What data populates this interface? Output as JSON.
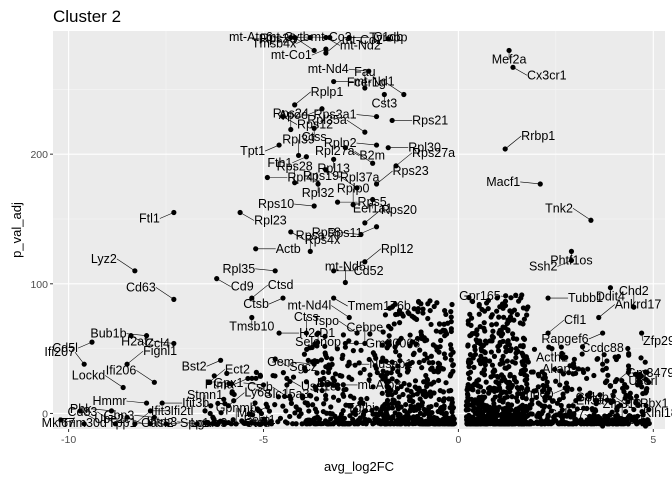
{
  "chart_data": {
    "type": "scatter",
    "title": "Cluster 2",
    "xlabel": "avg_log2FC",
    "ylabel": "p_val_adj",
    "xlim": [
      -10.4,
      5.3
    ],
    "ylim": [
      -12,
      295
    ],
    "xticks": [
      -10,
      -5,
      0,
      5
    ],
    "yticks": [
      0,
      100,
      200
    ],
    "grid": true,
    "panel_color": "#ebebeb",
    "point_color": "#000000",
    "labeled_genes": [
      {
        "gene": "mt-Atp6",
        "x": -4.3,
        "y": 290
      },
      {
        "gene": "mt-Co3",
        "x": -4.2,
        "y": 290
      },
      {
        "gene": "Tmsb4x",
        "x": -3.8,
        "y": 290
      },
      {
        "gene": "mt-Nd2",
        "x": -3.4,
        "y": 290
      },
      {
        "gene": "mt-Cytb",
        "x": -3.3,
        "y": 290
      },
      {
        "gene": "Tyrobp",
        "x": -2.8,
        "y": 290
      },
      {
        "gene": "C1qb",
        "x": -1.8,
        "y": 289
      },
      {
        "gene": "Mef2a",
        "x": 1.3,
        "y": 280
      },
      {
        "gene": "Rps29",
        "x": -3.7,
        "y": 280
      },
      {
        "gene": "mt-Co2",
        "x": -3.4,
        "y": 278
      },
      {
        "gene": "mt-Co1",
        "x": -3.4,
        "y": 281
      },
      {
        "gene": "Cx3cr1",
        "x": 1.4,
        "y": 267
      },
      {
        "gene": "mt-Nd4",
        "x": -2.3,
        "y": 264
      },
      {
        "gene": "mt-Nd1",
        "x": -3.2,
        "y": 256
      },
      {
        "gene": "Fau",
        "x": -2.4,
        "y": 251
      },
      {
        "gene": "Cst3",
        "x": -1.9,
        "y": 246
      },
      {
        "gene": "Fcer1g",
        "x": -1.4,
        "y": 246
      },
      {
        "gene": "Rplp1",
        "x": -4.2,
        "y": 238
      },
      {
        "gene": "Apoe",
        "x": -3.5,
        "y": 235
      },
      {
        "gene": "Rps12",
        "x": -4.5,
        "y": 229
      },
      {
        "gene": "Rps3a1",
        "x": -2.1,
        "y": 229
      },
      {
        "gene": "Rps21",
        "x": -1.7,
        "y": 226
      },
      {
        "gene": "Rps24",
        "x": -4.3,
        "y": 219
      },
      {
        "gene": "Ctss",
        "x": -3.7,
        "y": 220
      },
      {
        "gene": "Rpl35a",
        "x": -2.4,
        "y": 217
      },
      {
        "gene": "Rrbp1",
        "x": 1.2,
        "y": 204
      },
      {
        "gene": "Tpt1",
        "x": -4.6,
        "y": 207
      },
      {
        "gene": "B2m",
        "x": -2.9,
        "y": 205
      },
      {
        "gene": "Rplp2",
        "x": -2.1,
        "y": 207
      },
      {
        "gene": "Rpl30",
        "x": -1.8,
        "y": 205
      },
      {
        "gene": "Rpl39",
        "x": -4.1,
        "y": 199
      },
      {
        "gene": "Rpl13",
        "x": -3.2,
        "y": 196
      },
      {
        "gene": "Rpl27a",
        "x": -2.2,
        "y": 193
      },
      {
        "gene": "Rps27a",
        "x": -1.6,
        "y": 191
      },
      {
        "gene": "Fth1",
        "x": -3.9,
        "y": 198
      },
      {
        "gene": "Rpl37a",
        "x": -3.4,
        "y": 188
      },
      {
        "gene": "Macf1",
        "x": 2.1,
        "y": 177
      },
      {
        "gene": "Rpl41",
        "x": -4.9,
        "y": 182
      },
      {
        "gene": "Rps28",
        "x": -4.2,
        "y": 178
      },
      {
        "gene": "Rpl32",
        "x": -3.6,
        "y": 177
      },
      {
        "gene": "Rps19",
        "x": -2.6,
        "y": 174
      },
      {
        "gene": "Rps23",
        "x": -2.1,
        "y": 177
      },
      {
        "gene": "Ftl1",
        "x": -7.3,
        "y": 155
      },
      {
        "gene": "Rpl23",
        "x": -5.6,
        "y": 155
      },
      {
        "gene": "Rps10",
        "x": -3.7,
        "y": 160
      },
      {
        "gene": "Rps5",
        "x": -3.1,
        "y": 163
      },
      {
        "gene": "Rplp0",
        "x": -2.7,
        "y": 161
      },
      {
        "gene": "Eef1a1",
        "x": -2.2,
        "y": 165
      },
      {
        "gene": "Tnk2",
        "x": 3.4,
        "y": 149
      },
      {
        "gene": "Rps20",
        "x": -2.4,
        "y": 147
      },
      {
        "gene": "Rps11",
        "x": -2.1,
        "y": 144
      },
      {
        "gene": "Rps4x",
        "x": -4.3,
        "y": 140
      },
      {
        "gene": "Rps8",
        "x": -2.5,
        "y": 138
      },
      {
        "gene": "Actb",
        "x": -5.2,
        "y": 127
      },
      {
        "gene": "Rpsa",
        "x": -3.8,
        "y": 125
      },
      {
        "gene": "Phtf1os",
        "x": 2.9,
        "y": 125
      },
      {
        "gene": "Lyz2",
        "x": -8.3,
        "y": 110
      },
      {
        "gene": "Rpl12",
        "x": -2.4,
        "y": 117
      },
      {
        "gene": "Ssh2",
        "x": 2.9,
        "y": 118
      },
      {
        "gene": "Cd9",
        "x": -6.2,
        "y": 104
      },
      {
        "gene": "Rpl35",
        "x": -4.7,
        "y": 110
      },
      {
        "gene": "Cd52",
        "x": -3.2,
        "y": 110
      },
      {
        "gene": "mt-Nd5",
        "x": -2.9,
        "y": 101
      },
      {
        "gene": "Ddit4",
        "x": 3.9,
        "y": 97
      },
      {
        "gene": "Cd63",
        "x": -7.3,
        "y": 88
      },
      {
        "gene": "Ctsd",
        "x": -5.3,
        "y": 89
      },
      {
        "gene": "Ctsb",
        "x": -4.5,
        "y": 89
      },
      {
        "gene": "Tmem176b",
        "x": -3.2,
        "y": 89
      },
      {
        "gene": "Gpr165",
        "x": 1.6,
        "y": 89
      },
      {
        "gene": "Tubb1",
        "x": 2.3,
        "y": 89
      },
      {
        "gene": "Chd2",
        "x": 4.5,
        "y": 82
      },
      {
        "gene": "Tmsb10",
        "x": -5.3,
        "y": 74
      },
      {
        "gene": "mt-Nd4l",
        "x": -2.8,
        "y": 74
      },
      {
        "gene": "Ankrd17",
        "x": 3.6,
        "y": 74
      },
      {
        "gene": "Cd5l",
        "x": -9.4,
        "y": 55
      },
      {
        "gene": "Ccl4",
        "x": -8.4,
        "y": 60
      },
      {
        "gene": "Bub1b",
        "x": -8.0,
        "y": 60
      },
      {
        "gene": "H2-D1",
        "x": -4.6,
        "y": 62
      },
      {
        "gene": "Ctss",
        "x": -3.9,
        "y": 62
      },
      {
        "gene": "Selenop",
        "x": -3.6,
        "y": 62
      },
      {
        "gene": "Tspo",
        "x": -2.6,
        "y": 62
      },
      {
        "gene": "Cfl1",
        "x": 2.3,
        "y": 62
      },
      {
        "gene": "Rapgef6",
        "x": 3.7,
        "y": 62
      },
      {
        "gene": "Zfp292",
        "x": 4.7,
        "y": 62
      },
      {
        "gene": "H2afz",
        "x": -7.3,
        "y": 54
      },
      {
        "gene": "Gm30068",
        "x": -2.9,
        "y": 54
      },
      {
        "gene": "Cebpe",
        "x": -2.4,
        "y": 54
      },
      {
        "gene": "Acth1",
        "x": 2.4,
        "y": 50
      },
      {
        "gene": "Ifi207",
        "x": -9.6,
        "y": 38
      },
      {
        "gene": "Fignl1",
        "x": -8.5,
        "y": 38
      },
      {
        "gene": "Bst2",
        "x": -6.1,
        "y": 41
      },
      {
        "gene": "Sgcz",
        "x": -4.7,
        "y": 42
      },
      {
        "gene": "Gem",
        "x": -3.7,
        "y": 38
      },
      {
        "gene": "Nusap1",
        "x": -2.8,
        "y": 38
      },
      {
        "gene": "Ccdc88",
        "x": 3.7,
        "y": 38
      },
      {
        "gene": "Ucorl",
        "x": 4.8,
        "y": 32
      },
      {
        "gene": "Ifi206",
        "x": -7.8,
        "y": 24
      },
      {
        "gene": "Ect2",
        "x": -6.4,
        "y": 24
      },
      {
        "gene": "Ptma",
        "x": -5.4,
        "y": 27
      },
      {
        "gene": "Usp18",
        "x": -4.4,
        "y": 27
      },
      {
        "gene": "Gpx1",
        "x": -5.0,
        "y": 22
      },
      {
        "gene": "mt-Atp8",
        "x": -3.1,
        "y": 22
      },
      {
        "gene": "Akap9",
        "x": 2.6,
        "y": 22
      },
      {
        "gene": "Slc15a3",
        "x": -4.4,
        "y": 22
      },
      {
        "gene": "Lockd",
        "x": -8.6,
        "y": 20
      },
      {
        "gene": "Gm3479",
        "x": 3.9,
        "y": 21
      },
      {
        "gene": "Anpep",
        "x": 2.8,
        "y": 20
      },
      {
        "gene": "Pbx1",
        "x": 4.3,
        "y": 14
      },
      {
        "gene": "Hmmr",
        "x": -8.0,
        "y": 8
      },
      {
        "gene": "Ifit3b",
        "x": -7.6,
        "y": 8
      },
      {
        "gene": "Lbr",
        "x": -3.4,
        "y": 11
      },
      {
        "gene": "Tgfbi",
        "x": -2.5,
        "y": 11
      },
      {
        "gene": "Cstb",
        "x": -4.3,
        "y": 11
      },
      {
        "gene": "Ly6a",
        "x": -5.9,
        "y": 6
      },
      {
        "gene": "Mif",
        "x": -4.9,
        "y": 5
      },
      {
        "gene": "Ube2c",
        "x": -9.7,
        "y": 2
      },
      {
        "gene": "Pbk",
        "x": -8.9,
        "y": 2
      },
      {
        "gene": "Ifi2tl",
        "x": -7.9,
        "y": 2
      },
      {
        "gene": "Stmn1",
        "x": -6.5,
        "y": 2
      },
      {
        "gene": "Best1",
        "x": -5.1,
        "y": 2
      },
      {
        "gene": "Golgb1",
        "x": 4.5,
        "y": 3
      },
      {
        "gene": "Eif3a",
        "x": 2.6,
        "y": 0
      },
      {
        "gene": "Mki67",
        "x": -10.2,
        "y": -5
      },
      {
        "gene": "Oasl2",
        "x": -8.5,
        "y": -3
      },
      {
        "gene": "Gbp3",
        "x": -7.8,
        "y": -3
      },
      {
        "gene": "Ccnd2",
        "x": 3.3,
        "y": -5
      },
      {
        "gene": "Zfp313",
        "x": 4.2,
        "y": -5
      },
      {
        "gene": "Trim30d",
        "x": -9.6,
        "y": -8
      },
      {
        "gene": "Cd83",
        "x": -8.8,
        "y": -8
      },
      {
        "gene": "Ifit3",
        "x": -8.3,
        "y": -8
      },
      {
        "gene": "Tpp1",
        "x": -7.9,
        "y": -8
      },
      {
        "gene": "Spp1",
        "x": -7.5,
        "y": -8
      },
      {
        "gene": "Ifitm3",
        "x": -6.7,
        "y": -8
      },
      {
        "gene": "Ctsd",
        "x": -6.0,
        "y": -8
      },
      {
        "gene": "Gpnmb",
        "x": -5.7,
        "y": -8
      },
      {
        "gene": "Lgals3",
        "x": -6.4,
        "y": -8
      },
      {
        "gene": "Galnt7",
        "x": 3.7,
        "y": -10
      },
      {
        "gene": "Klhl18",
        "x": 4.8,
        "y": -10
      }
    ]
  }
}
